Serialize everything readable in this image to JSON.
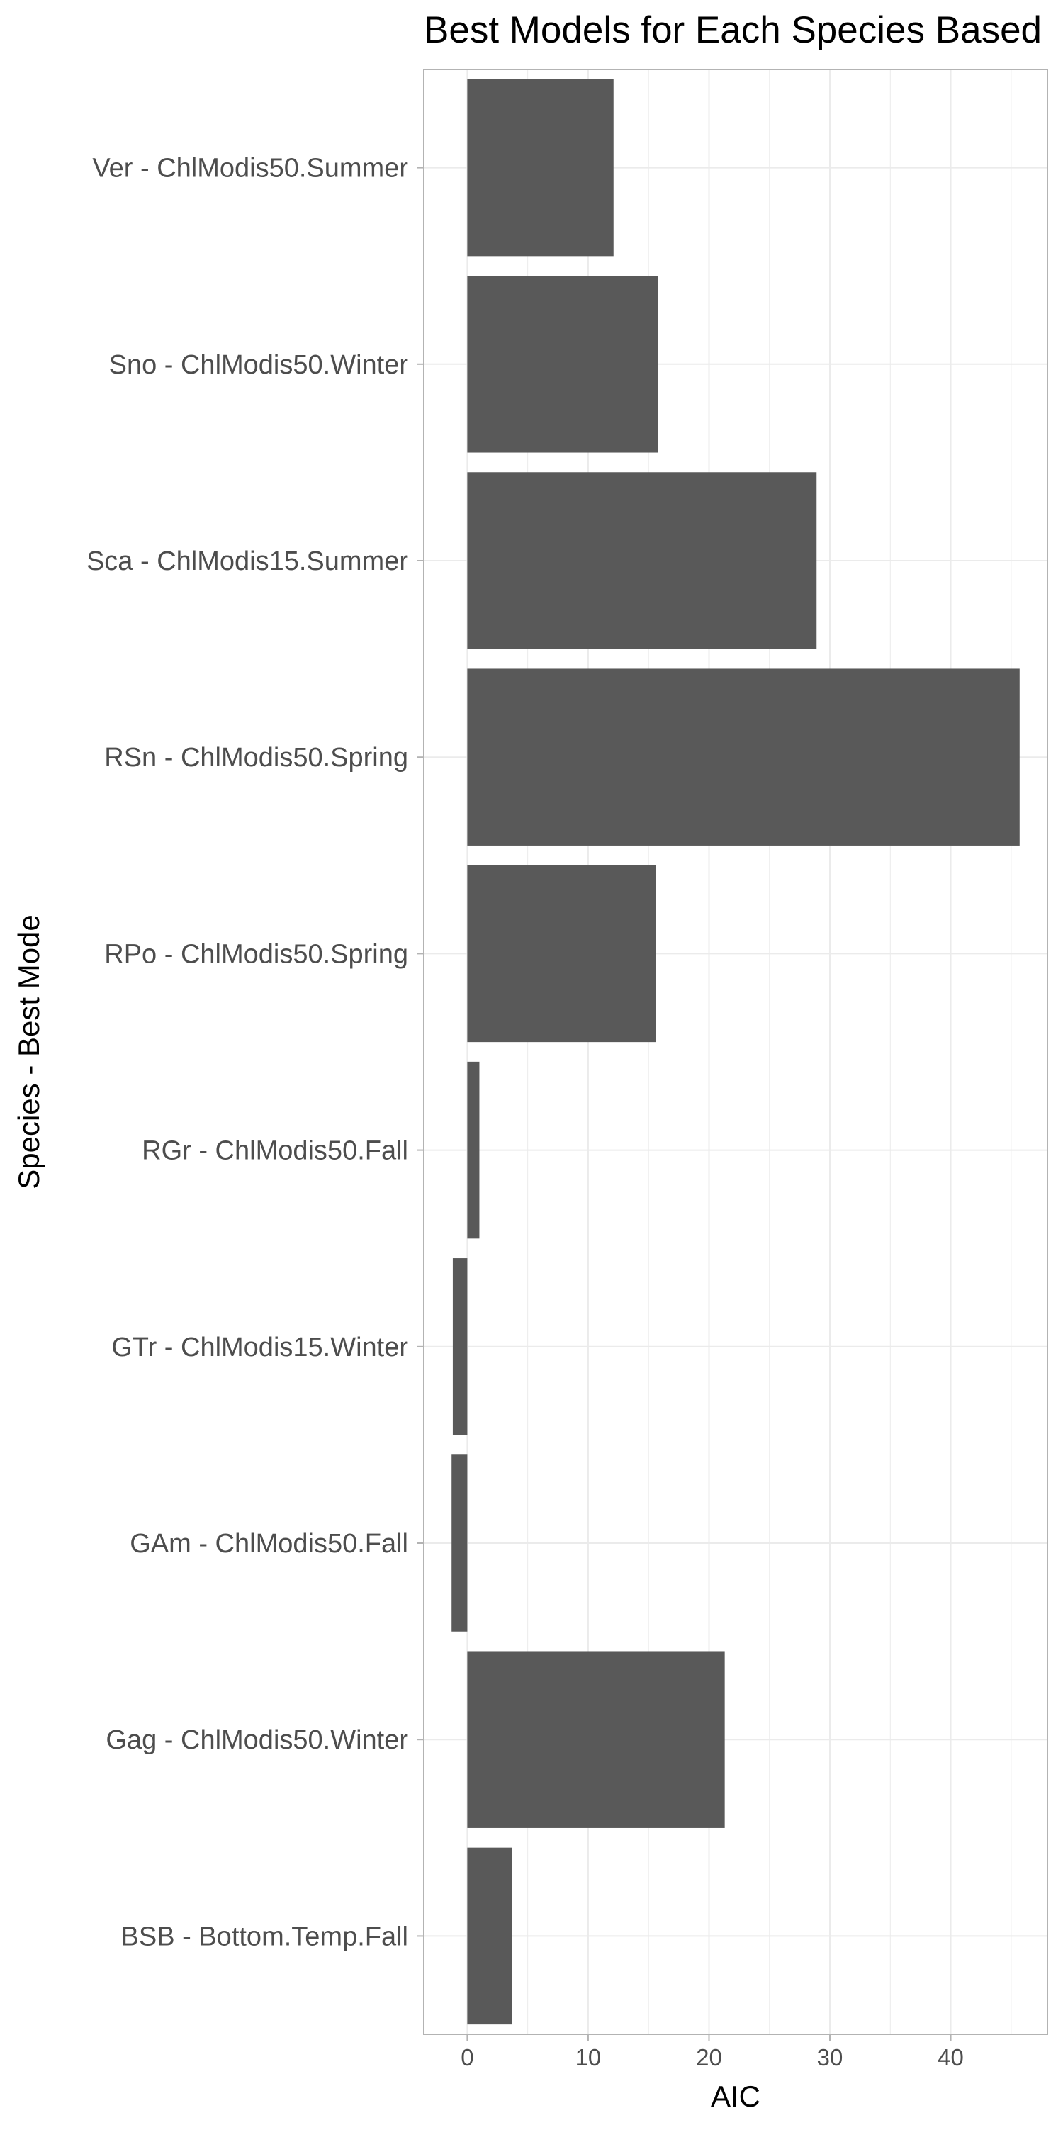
{
  "chart_data": {
    "type": "bar",
    "orientation": "horizontal",
    "title": "Best Models for Each Species Based",
    "xlabel": "AIC",
    "ylabel": "Species - Best Mode",
    "categories": [
      "Ver - ChlModis50.Summer",
      "Sno - ChlModis50.Winter",
      "Sca - ChlModis15.Summer",
      "RSn - ChlModis50.Spring",
      "RPo - ChlModis50.Spring",
      "RGr - ChlModis50.Fall",
      "GTr - ChlModis15.Winter",
      "GAm - ChlModis50.Fall",
      "Gag - ChlModis50.Winter",
      "BSB - Bottom.Temp.Fall"
    ],
    "values": [
      12.1,
      15.8,
      28.9,
      45.7,
      15.6,
      1.0,
      -1.2,
      -1.3,
      21.3,
      3.7
    ],
    "xlim": [
      -3.6,
      48.0
    ],
    "x_ticks": [
      0,
      10,
      20,
      30,
      40
    ],
    "x_tick_labels": [
      "0",
      "10",
      "20",
      "30",
      "40"
    ],
    "grid": true,
    "legend": "none",
    "bar_color": "#595959",
    "grid_color": "#ebebeb",
    "panel_border_color": "#b3b3b3",
    "axis_text_color": "#4d4d4d",
    "title_color": "#000000"
  }
}
